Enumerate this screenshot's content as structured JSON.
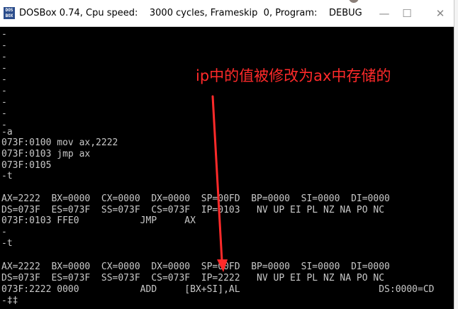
{
  "window": {
    "title": "DOSBox 0.74, Cpu speed:    3000 cycles, Frameskip  0, Program:    DEBUG",
    "icon_label": "DOS BOX",
    "min_label": "—",
    "max_label": "☐",
    "close_label": "✕"
  },
  "terminal": {
    "lines": [
      "-",
      "-",
      "-",
      "-",
      "-",
      "-",
      "-",
      "-",
      "-",
      "-a",
      "073F:0100 mov ax,2222",
      "073F:0103 jmp ax",
      "073F:0105",
      "-t",
      "",
      "AX=2222  BX=0000  CX=0000  DX=0000  SP=00FD  BP=0000  SI=0000  DI=0000",
      "DS=073F  ES=073F  SS=073F  CS=073F  IP=0103   NV UP EI PL NZ NA PO NC",
      "073F:0103 FFE0           JMP     AX",
      "-",
      "-t",
      "",
      "AX=2222  BX=0000  CX=0000  DX=0000  SP=00FD  BP=0000  SI=0000  DI=0000",
      "DS=073F  ES=073F  SS=073F  CS=073F  IP=2222   NV UP EI PL NZ NA PO NC",
      "073F:2222 0000           ADD     [BX+SI],AL                         DS:0000=CD",
      "-‡‡"
    ]
  },
  "annotation": {
    "text": "ip中的值被修改为ax中存储的",
    "color": "#ff2a2a"
  }
}
